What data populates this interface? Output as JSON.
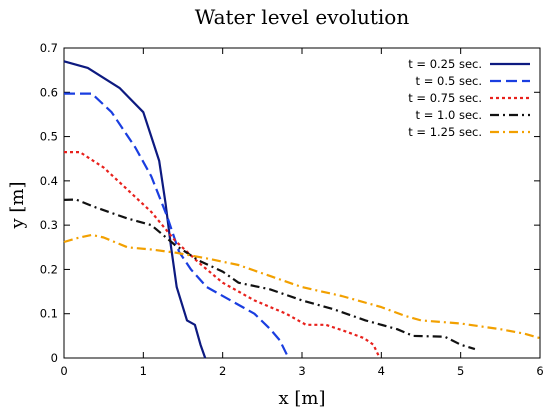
{
  "chart_data": {
    "type": "line",
    "title": "Water level evolution",
    "xlabel": "x [m]",
    "ylabel": "y [m]",
    "xlim": [
      0,
      6
    ],
    "ylim": [
      0,
      0.7
    ],
    "x_ticks": [
      "0",
      "1",
      "2",
      "3",
      "4",
      "5",
      "6"
    ],
    "y_ticks": [
      "0",
      "0.1",
      "0.2",
      "0.3",
      "0.4",
      "0.5",
      "0.6",
      "0.7"
    ],
    "grid": false,
    "legend_position": "top-right",
    "series": [
      {
        "name": "t = 0.25 sec.",
        "color": "#0d1a80",
        "dash": "solid",
        "points": [
          [
            0,
            0.67
          ],
          [
            0.3,
            0.655
          ],
          [
            0.7,
            0.61
          ],
          [
            1.0,
            0.555
          ],
          [
            1.1,
            0.5
          ],
          [
            1.2,
            0.445
          ],
          [
            1.28,
            0.35
          ],
          [
            1.35,
            0.25
          ],
          [
            1.42,
            0.16
          ],
          [
            1.55,
            0.085
          ],
          [
            1.65,
            0.075
          ],
          [
            1.72,
            0.03
          ],
          [
            1.78,
            0
          ]
        ]
      },
      {
        "name": "t = 0.5 sec.",
        "color": "#1a3ee0",
        "dash": "long-dash",
        "points": [
          [
            0,
            0.597
          ],
          [
            0.35,
            0.597
          ],
          [
            0.6,
            0.555
          ],
          [
            0.9,
            0.475
          ],
          [
            1.1,
            0.41
          ],
          [
            1.3,
            0.32
          ],
          [
            1.45,
            0.24
          ],
          [
            1.6,
            0.2
          ],
          [
            1.8,
            0.16
          ],
          [
            2.1,
            0.13
          ],
          [
            2.4,
            0.1
          ],
          [
            2.6,
            0.065
          ],
          [
            2.72,
            0.04
          ],
          [
            2.83,
            0
          ]
        ]
      },
      {
        "name": "t = 0.75 sec.",
        "color": "#e8211c",
        "dash": "dotted",
        "points": [
          [
            0,
            0.465
          ],
          [
            0.2,
            0.465
          ],
          [
            0.5,
            0.43
          ],
          [
            0.8,
            0.38
          ],
          [
            1.1,
            0.33
          ],
          [
            1.4,
            0.265
          ],
          [
            1.7,
            0.215
          ],
          [
            2.0,
            0.17
          ],
          [
            2.4,
            0.13
          ],
          [
            2.8,
            0.1
          ],
          [
            3.05,
            0.075
          ],
          [
            3.3,
            0.075
          ],
          [
            3.55,
            0.06
          ],
          [
            3.78,
            0.045
          ],
          [
            3.9,
            0.03
          ],
          [
            3.98,
            0
          ]
        ]
      },
      {
        "name": "t = 1.0 sec.",
        "color": "#111111",
        "dash": "dash-dot",
        "points": [
          [
            0,
            0.357
          ],
          [
            0.15,
            0.358
          ],
          [
            0.4,
            0.34
          ],
          [
            0.8,
            0.315
          ],
          [
            1.1,
            0.3
          ],
          [
            1.4,
            0.255
          ],
          [
            1.7,
            0.22
          ],
          [
            2.0,
            0.195
          ],
          [
            2.2,
            0.17
          ],
          [
            2.6,
            0.155
          ],
          [
            3.0,
            0.13
          ],
          [
            3.4,
            0.11
          ],
          [
            3.8,
            0.085
          ],
          [
            4.2,
            0.065
          ],
          [
            4.4,
            0.05
          ],
          [
            4.8,
            0.048
          ],
          [
            5.0,
            0.03
          ],
          [
            5.18,
            0.02
          ]
        ]
      },
      {
        "name": "t = 1.25 sec.",
        "color": "#f2a000",
        "dash": "dash-dot",
        "points": [
          [
            0,
            0.262
          ],
          [
            0.15,
            0.27
          ],
          [
            0.35,
            0.278
          ],
          [
            0.5,
            0.272
          ],
          [
            0.8,
            0.25
          ],
          [
            1.1,
            0.245
          ],
          [
            1.4,
            0.238
          ],
          [
            1.8,
            0.225
          ],
          [
            2.2,
            0.21
          ],
          [
            2.6,
            0.185
          ],
          [
            3.0,
            0.16
          ],
          [
            3.5,
            0.14
          ],
          [
            4.0,
            0.115
          ],
          [
            4.3,
            0.095
          ],
          [
            4.5,
            0.085
          ],
          [
            5.0,
            0.078
          ],
          [
            5.5,
            0.065
          ],
          [
            5.8,
            0.055
          ],
          [
            6.0,
            0.045
          ]
        ]
      }
    ]
  }
}
